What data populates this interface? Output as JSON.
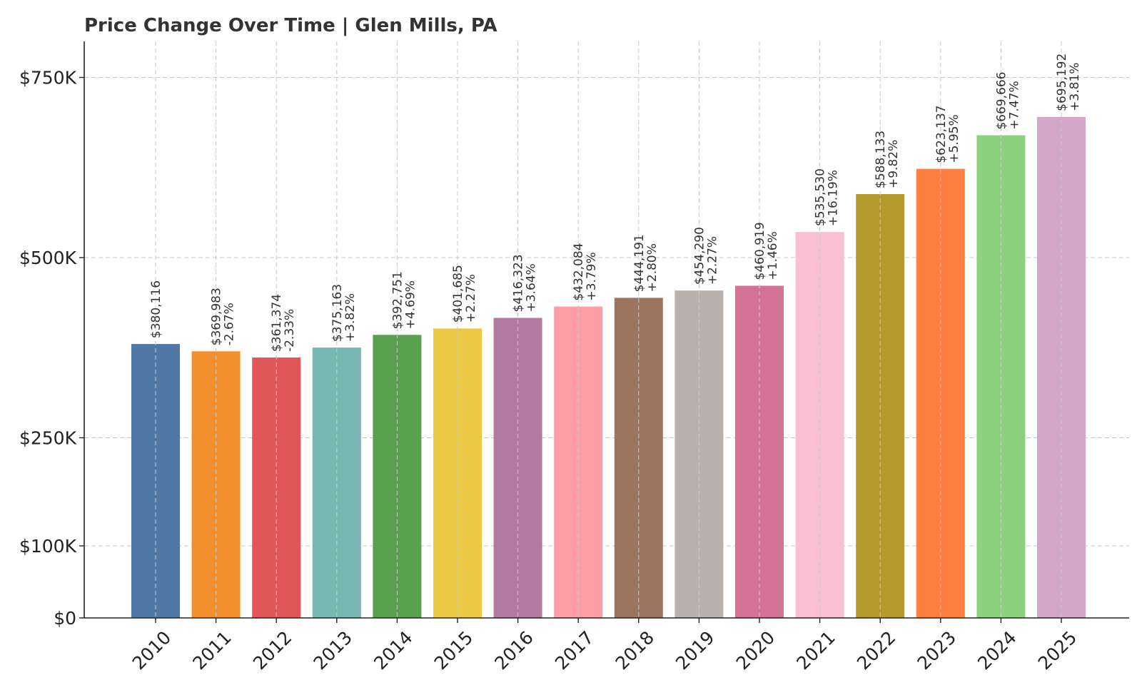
{
  "chart_data": {
    "type": "bar",
    "title": "Price Change Over Time | Glen Mills, PA",
    "xlabel": "",
    "ylabel": "",
    "ylim": [
      0,
      800000
    ],
    "yticks": [
      {
        "value": 0,
        "label": "$0"
      },
      {
        "value": 100000,
        "label": "$100K"
      },
      {
        "value": 250000,
        "label": "$250K"
      },
      {
        "value": 500000,
        "label": "$500K"
      },
      {
        "value": 750000,
        "label": "$750K"
      }
    ],
    "grid": true,
    "legend": "none",
    "categories": [
      "2010",
      "2011",
      "2012",
      "2013",
      "2014",
      "2015",
      "2016",
      "2017",
      "2018",
      "2019",
      "2020",
      "2021",
      "2022",
      "2023",
      "2024",
      "2025"
    ],
    "values": [
      380116,
      369983,
      361374,
      375163,
      392751,
      401685,
      416323,
      432084,
      444191,
      454290,
      460919,
      535530,
      588133,
      623137,
      669666,
      695192
    ],
    "value_labels": [
      "$380,116",
      "$369,983",
      "$361,374",
      "$375,163",
      "$392,751",
      "$401,685",
      "$416,323",
      "$432,084",
      "$444,191",
      "$454,290",
      "$460,919",
      "$535,530",
      "$588,133",
      "$623,137",
      "$669,666",
      "$695,192"
    ],
    "change_labels": [
      "",
      "-2.67%",
      "-2.33%",
      "+3.82%",
      "+4.69%",
      "+2.27%",
      "+3.64%",
      "+3.79%",
      "+2.80%",
      "+2.27%",
      "+1.46%",
      "+16.19%",
      "+9.82%",
      "+5.95%",
      "+7.47%",
      "+3.81%"
    ],
    "colors": [
      "#4e79a7",
      "#f28e2b",
      "#e15759",
      "#76b7b2",
      "#59a14f",
      "#edc948",
      "#b07aa1",
      "#ff9da7",
      "#9c755f",
      "#bab0ac",
      "#d37295",
      "#fabfd2",
      "#b6992d",
      "#ff7f3f",
      "#8cd17d",
      "#d4a6c8"
    ]
  }
}
